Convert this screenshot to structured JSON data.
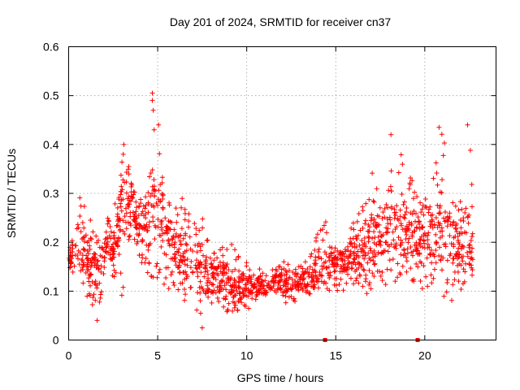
{
  "chart_data": {
    "type": "scatter",
    "title": "Day 201 of 2024, SRMTID for receiver cn37",
    "xlabel": "GPS time / hours",
    "ylabel": "SRMTID / TECUs",
    "xlim": [
      0,
      24
    ],
    "ylim": [
      0,
      0.6
    ],
    "xticks": [
      0,
      5,
      10,
      15,
      20
    ],
    "xtick_labels": [
      "0",
      "5",
      "10",
      "15",
      "20"
    ],
    "yticks": [
      0,
      0.1,
      0.2,
      0.3,
      0.4,
      0.5,
      0.6
    ],
    "ytick_labels": [
      "0",
      "0.1",
      "0.2",
      "0.3",
      "0.4",
      "0.5",
      "0.6"
    ],
    "grid": true,
    "marker": "plus",
    "color": "#ff0000",
    "zero_markers_x": [
      14.4,
      19.6
    ],
    "envelope": {
      "x": [
        0,
        0.5,
        1,
        1.5,
        2,
        2.5,
        3,
        3.5,
        4,
        4.5,
        5,
        5.5,
        6,
        6.5,
        7,
        7.5,
        8,
        8.5,
        9,
        9.5,
        10,
        10.5,
        11,
        11.5,
        12,
        12.5,
        13,
        13.5,
        14,
        14.5,
        15,
        15.5,
        16,
        16.5,
        17,
        17.5,
        18,
        18.5,
        19,
        19.5,
        20,
        20.5,
        21,
        21.5,
        22,
        22.5
      ],
      "low": [
        0.14,
        0.13,
        0.08,
        0.05,
        0.1,
        0.13,
        0.09,
        0.22,
        0.16,
        0.13,
        0.12,
        0.1,
        0.09,
        0.08,
        0.06,
        0.05,
        0.07,
        0.06,
        0.05,
        0.06,
        0.06,
        0.08,
        0.09,
        0.09,
        0.08,
        0.07,
        0.08,
        0.09,
        0.1,
        0.1,
        0.1,
        0.1,
        0.11,
        0.1,
        0.09,
        0.11,
        0.11,
        0.12,
        0.12,
        0.11,
        0.1,
        0.1,
        0.08,
        0.08,
        0.1,
        0.13
      ],
      "mid": [
        0.16,
        0.2,
        0.18,
        0.14,
        0.18,
        0.19,
        0.28,
        0.3,
        0.22,
        0.26,
        0.29,
        0.22,
        0.19,
        0.17,
        0.16,
        0.15,
        0.12,
        0.13,
        0.12,
        0.11,
        0.11,
        0.11,
        0.11,
        0.12,
        0.12,
        0.12,
        0.12,
        0.13,
        0.14,
        0.15,
        0.16,
        0.16,
        0.18,
        0.18,
        0.2,
        0.21,
        0.25,
        0.24,
        0.22,
        0.22,
        0.2,
        0.21,
        0.24,
        0.2,
        0.2,
        0.2
      ],
      "high": [
        0.17,
        0.31,
        0.29,
        0.21,
        0.25,
        0.25,
        0.39,
        0.35,
        0.3,
        0.49,
        0.43,
        0.3,
        0.27,
        0.3,
        0.28,
        0.27,
        0.2,
        0.19,
        0.23,
        0.21,
        0.16,
        0.15,
        0.15,
        0.15,
        0.16,
        0.16,
        0.15,
        0.18,
        0.28,
        0.24,
        0.19,
        0.19,
        0.27,
        0.28,
        0.35,
        0.3,
        0.42,
        0.38,
        0.4,
        0.3,
        0.29,
        0.34,
        0.43,
        0.3,
        0.3,
        0.43
      ]
    }
  }
}
